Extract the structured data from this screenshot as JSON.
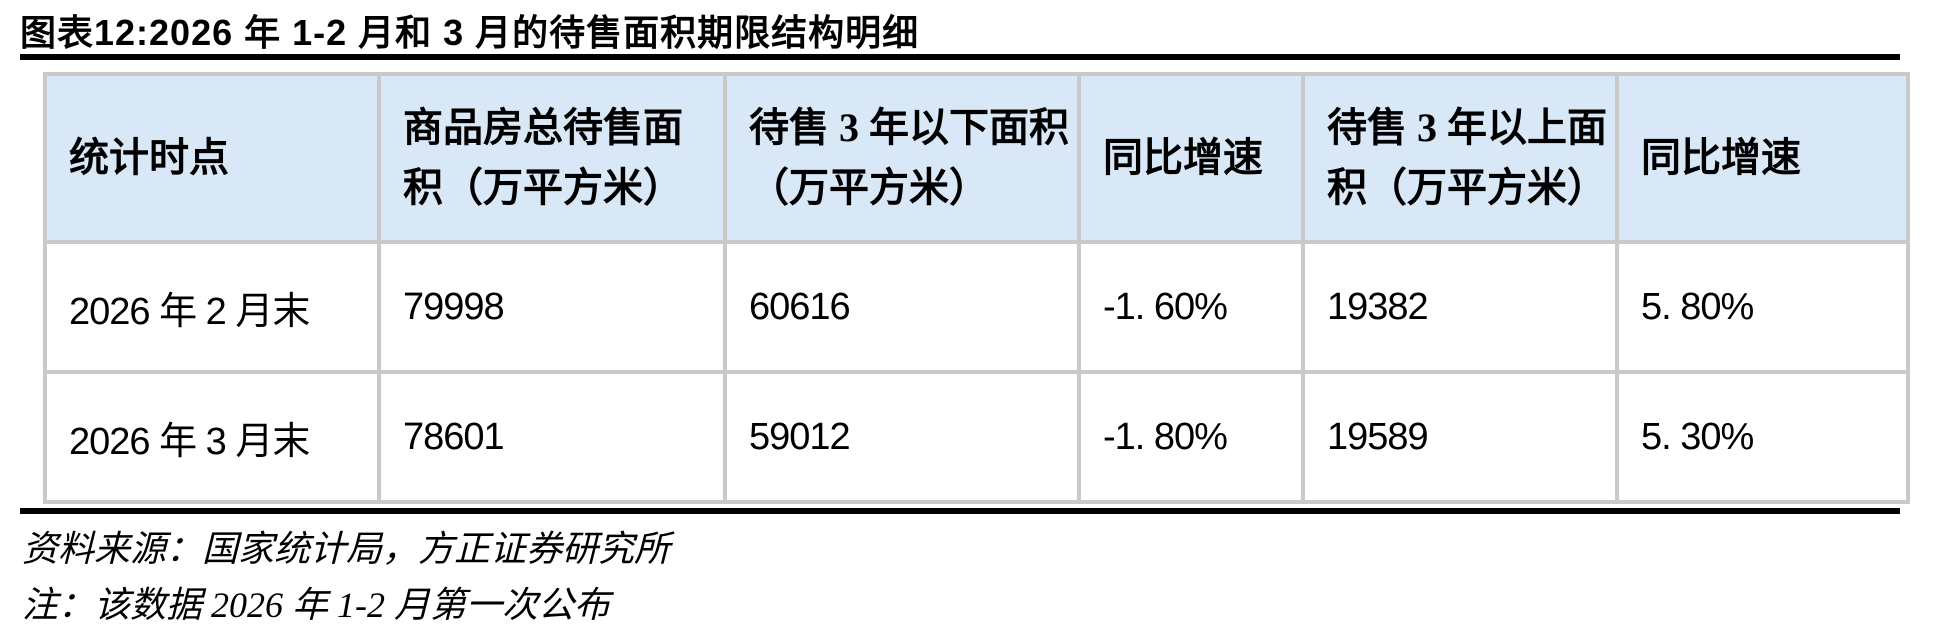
{
  "figure": {
    "title": "图表12:2026 年 1-2 月和 3 月的待售面积期限结构明细",
    "source": "资料来源：国家统计局，方正证券研究所",
    "note": "注：该数据 2026 年 1-2 月第一次公布"
  },
  "table": {
    "columns": [
      "统计时点",
      "商品房总待售面积（万平方米）",
      "待售 3 年以下面积（万平方米）",
      "同比增速",
      "待售 3 年以上面积（万平方米）",
      "同比增速"
    ],
    "rows": [
      [
        "2026 年 2 月末",
        "79998",
        "60616",
        "-1. 60%",
        "19382",
        "5. 80%"
      ],
      [
        "2026 年 3 月末",
        "78601",
        "59012",
        "-1. 80%",
        "19589",
        "5. 30%"
      ]
    ]
  },
  "colors": {
    "header_bg": "#d9e8f6",
    "table_border": "#c9c9c9",
    "rule": "#000000",
    "text": "#000000"
  }
}
